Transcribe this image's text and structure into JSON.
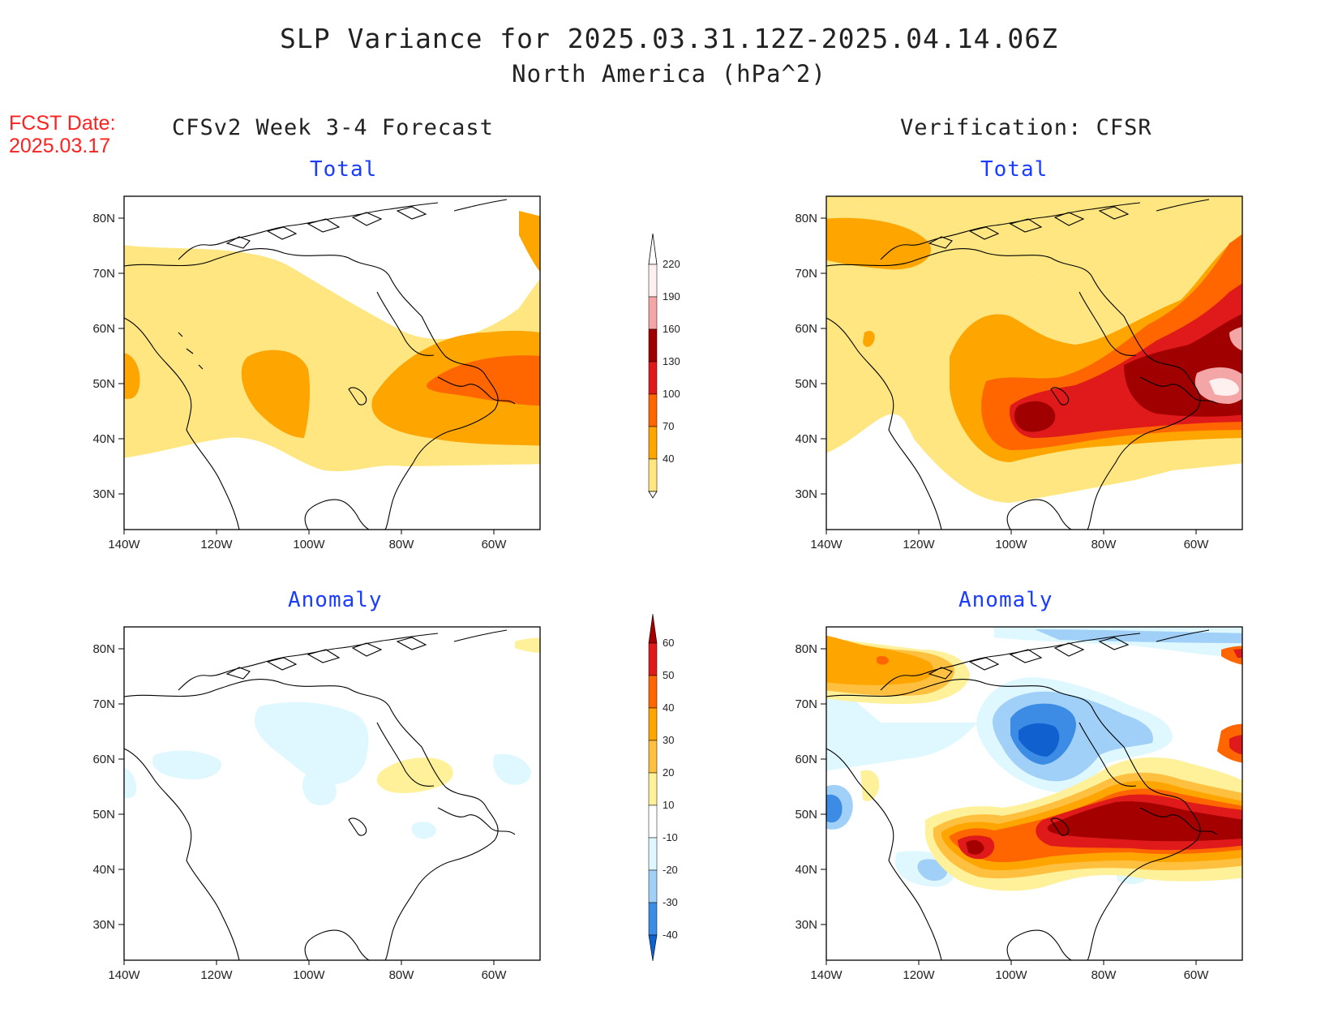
{
  "title_line1": "SLP Variance for 2025.03.31.12Z-2025.04.14.06Z",
  "title_line2": "North America (hPa^2)",
  "fcst_label": "FCST Date:",
  "fcst_date": "2025.03.17",
  "left_column_title": "CFSv2 Week 3-4 Forecast",
  "right_column_title": "Verification: CFSR",
  "panels": {
    "tl": {
      "title": "Total"
    },
    "tr": {
      "title": "Total"
    },
    "bl": {
      "title": "Anomaly"
    },
    "br": {
      "title": "Anomaly"
    }
  },
  "axes": {
    "lon_labels": [
      "140W",
      "120W",
      "100W",
      "80W",
      "60W"
    ],
    "lat_labels": [
      "80N",
      "70N",
      "60N",
      "50N",
      "40N",
      "30N"
    ],
    "lon_range": [
      -140,
      -50
    ],
    "lat_range": [
      25,
      85
    ]
  },
  "colorbars": {
    "total": {
      "levels": [
        "220",
        "190",
        "160",
        "130",
        "100",
        "70",
        "40"
      ],
      "colors": [
        "#fff0f0",
        "#f4a6a6",
        "#a00000",
        "#e01a1a",
        "#ff6600",
        "#ffa500",
        "#ffe680"
      ]
    },
    "anomaly": {
      "levels": [
        "60",
        "50",
        "40",
        "30",
        "20",
        "10",
        "-10",
        "-20",
        "-30",
        "-40"
      ],
      "colors": [
        "#a50000",
        "#e01a1a",
        "#ff6600",
        "#ffa500",
        "#ffc040",
        "#fff09a",
        "#ffffff",
        "#dff8ff",
        "#a0d0f8",
        "#3c8ce6",
        "#1060d0"
      ]
    }
  }
}
